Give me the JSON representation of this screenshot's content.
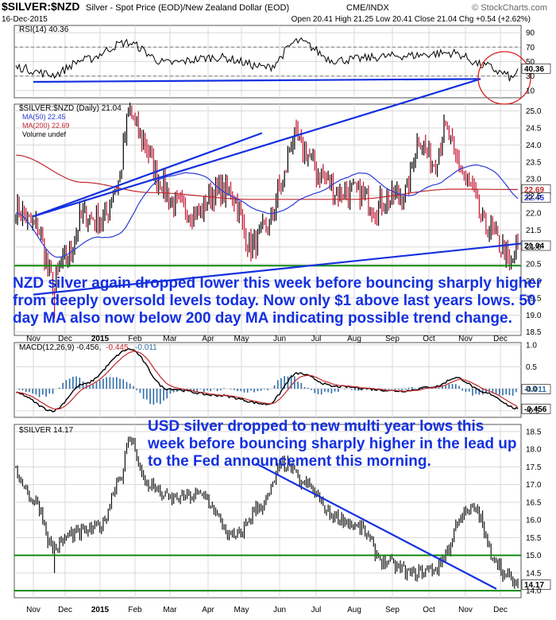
{
  "header": {
    "symbol": "$SILVER:$NZD",
    "description": "Silver - Spot Price (EOD)/New Zealand Dollar (EOD)",
    "exchange": "CME/INDX",
    "brand": "© StockCharts.com",
    "date": "16-Dec-2015",
    "ohlc": "Open 20.41  High 21.25  Low 20.41  Close 21.04  Chg +0.54 (+2.62%)"
  },
  "colors": {
    "price_up": "#000000",
    "price_down": "#c8102e",
    "ma50": "#2b3bd6",
    "ma200": "#c0282e",
    "trendline": "#1430e0",
    "support": "#118a11",
    "circle": "#d81e1e",
    "grid": "#d8d8d8",
    "hist": "#2f6da7"
  },
  "x_axis": {
    "months": [
      "Nov",
      "Dec",
      "2015",
      "Feb",
      "Mar",
      "Apr",
      "May",
      "Jun",
      "Jul",
      "Aug",
      "Sep",
      "Oct",
      "Nov",
      "Dec"
    ]
  },
  "rsi_panel": {
    "title": "RSI(14) 40.36",
    "value_label": "40.36",
    "ticks": [
      "90",
      "70",
      "50",
      "30",
      "10"
    ],
    "levels": [
      90,
      70,
      50,
      30,
      10
    ],
    "overbought": 70,
    "oversold": 30
  },
  "price_panel": {
    "title": "$SILVER:$NZD (Daily) 21.04",
    "ma50_label": "MA(50) 22.45",
    "ma200_label": "MA(200) 22.69",
    "volume_label": "Volume undef",
    "last_label": "21.04",
    "ma200_value_label": "22.69",
    "ma50_value_label": "22.45",
    "ticks": [
      "25.0",
      "24.5",
      "24.0",
      "23.5",
      "23.0",
      "22.5",
      "22.0",
      "21.5",
      "21.0",
      "20.5",
      "20.0",
      "19.5",
      "19.0",
      "18.5"
    ],
    "levels": [
      25.0,
      24.5,
      24.0,
      23.5,
      23.0,
      22.5,
      22.0,
      21.5,
      21.0,
      20.5,
      20.0,
      19.5,
      19.0,
      18.5
    ],
    "last": 21.04,
    "ma50": 22.45,
    "ma200": 22.69,
    "support": 20.45
  },
  "macd_panel": {
    "title_prefix": "MACD(12,26,9) -0.456,",
    "title_signal": "-0.445,",
    "title_hist": "-0.011",
    "ticks": [
      "1.0",
      "0.5",
      "0.0",
      "-0.5"
    ],
    "levels": [
      1.0,
      0.5,
      0.0,
      -0.5
    ],
    "macd_label": "-0.456",
    "hist_label": "-0.011"
  },
  "usd_panel": {
    "title": "$SILVER 14.17",
    "last_label": "14.17",
    "ticks": [
      "18.5",
      "18.0",
      "17.5",
      "17.0",
      "16.5",
      "16.0",
      "15.5",
      "15.0",
      "14.5",
      "14.0"
    ],
    "levels": [
      18.5,
      18.0,
      17.5,
      17.0,
      16.5,
      16.0,
      15.5,
      15.0,
      14.5,
      14.0
    ],
    "last": 14.17,
    "support_high": 15.0,
    "support_low": 14.0
  },
  "annotations": {
    "nzd": "NZD silver again dropped lower this week before bouncing sharply higher from deeply oversold levels today. Now only $1 above last years lows.  50 day MA also now below 200 day MA indicating possible trend change.",
    "usd": "USD silver dropped to new multi year lows this week before bouncing sharply higher in the lead up to the Fed announcement this morning."
  },
  "chart_data": [
    {
      "type": "line",
      "name": "RSI(14)",
      "title": "RSI(14) 40.36",
      "x": [
        "Nov",
        "Dec",
        "2015",
        "Feb",
        "Mar",
        "Apr",
        "May",
        "Jun",
        "Jul",
        "Aug",
        "Sep",
        "Oct",
        "Nov",
        "Dec",
        "16-Dec"
      ],
      "values": [
        42,
        35,
        48,
        72,
        50,
        55,
        58,
        76,
        52,
        55,
        58,
        62,
        46,
        38,
        40.36
      ],
      "ylim": [
        0,
        100
      ]
    },
    {
      "type": "line",
      "title": "$SILVER:$NZD (Daily) 21.04",
      "x": [
        "Nov",
        "Dec",
        "2015",
        "Feb",
        "Mar",
        "Apr",
        "May",
        "Jun",
        "Jul",
        "Aug",
        "Sep",
        "Oct",
        "Nov",
        "Dec",
        "16-Dec"
      ],
      "series": [
        {
          "name": "$SILVER:$NZD",
          "values": [
            22.1,
            19.9,
            21.6,
            24.9,
            22.2,
            22.6,
            21.0,
            24.2,
            22.4,
            22.3,
            23.9,
            24.4,
            23.2,
            21.3,
            21.04
          ]
        },
        {
          "name": "MA(50)",
          "values": [
            22.0,
            20.6,
            20.9,
            22.8,
            23.1,
            22.6,
            21.9,
            22.6,
            23.0,
            22.6,
            22.5,
            23.4,
            23.3,
            22.6,
            22.45
          ]
        },
        {
          "name": "MA(200)",
          "values": [
            23.7,
            23.2,
            22.8,
            22.6,
            22.4,
            22.3,
            22.4,
            22.5,
            22.4,
            22.3,
            22.4,
            22.6,
            22.8,
            22.8,
            22.69
          ]
        }
      ],
      "ylim": [
        18.4,
        25.2
      ]
    },
    {
      "type": "line",
      "title": "MACD(12,26,9) -0.456, -0.445, -0.011",
      "x": [
        "Nov",
        "Dec",
        "2015",
        "Feb",
        "Mar",
        "Apr",
        "May",
        "Jun",
        "Jul",
        "Aug",
        "Sep",
        "Oct",
        "Nov",
        "Dec",
        "16-Dec"
      ],
      "series": [
        {
          "name": "MACD",
          "values": [
            -0.1,
            -0.45,
            0.2,
            0.85,
            -0.1,
            -0.15,
            -0.3,
            0.3,
            0.05,
            -0.05,
            0.05,
            0.2,
            -0.1,
            -0.35,
            -0.456
          ]
        },
        {
          "name": "Signal",
          "values": [
            0.0,
            -0.35,
            0.05,
            0.65,
            0.1,
            -0.1,
            -0.25,
            0.15,
            0.1,
            -0.02,
            0.0,
            0.15,
            0.0,
            -0.3,
            -0.445
          ]
        }
      ],
      "ylim": [
        -0.65,
        1.05
      ]
    },
    {
      "type": "line",
      "title": "$SILVER 14.17",
      "x": [
        "Nov",
        "Dec",
        "2015",
        "Feb",
        "Mar",
        "Apr",
        "May",
        "Jun",
        "Jul",
        "Aug",
        "Sep",
        "Oct",
        "Nov",
        "Dec",
        "16-Dec"
      ],
      "values": [
        17.3,
        15.2,
        16.0,
        18.2,
        16.3,
        16.5,
        15.4,
        17.3,
        16.2,
        14.7,
        14.8,
        15.3,
        16.3,
        14.4,
        14.17
      ],
      "ylim": [
        13.8,
        18.7
      ]
    }
  ]
}
